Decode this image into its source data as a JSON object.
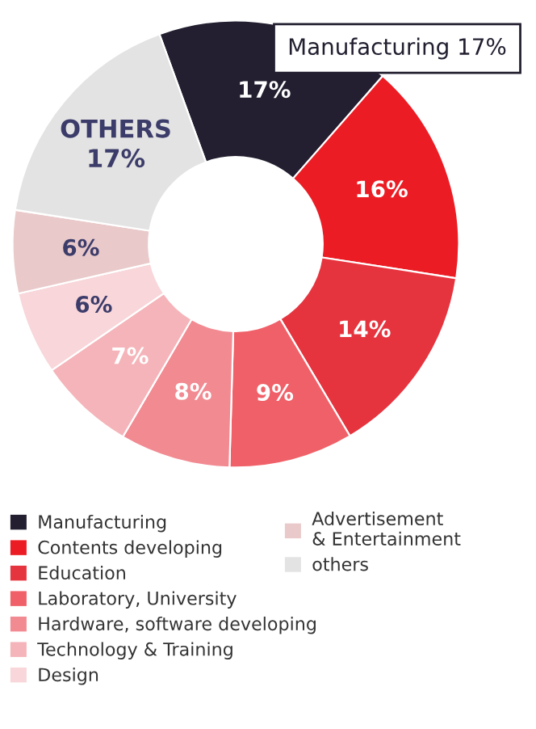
{
  "chart_data": {
    "type": "donut",
    "categories": [
      "Manufacturing",
      "Contents developing",
      "Education",
      "Laboratory, University",
      "Hardware, software developing",
      "Technology & Training",
      "Design",
      "Advertisement\n& Entertainment",
      "others"
    ],
    "values": [
      17,
      16,
      14,
      9,
      8,
      7,
      6,
      6,
      17
    ],
    "colors": [
      "#231f30",
      "#ec1c24",
      "#e6343f",
      "#f06068",
      "#f28a92",
      "#f5b4b9",
      "#f8d6d9",
      "#e9c9c9",
      "#e3e3e3"
    ],
    "value_labels": [
      "17%",
      "16%",
      "14%",
      "9%",
      "8%",
      "7%",
      "6%",
      "6%",
      "OTHERS\n17%"
    ],
    "annotations": [
      "Manufacturing 17%"
    ],
    "legend": "bottom"
  }
}
